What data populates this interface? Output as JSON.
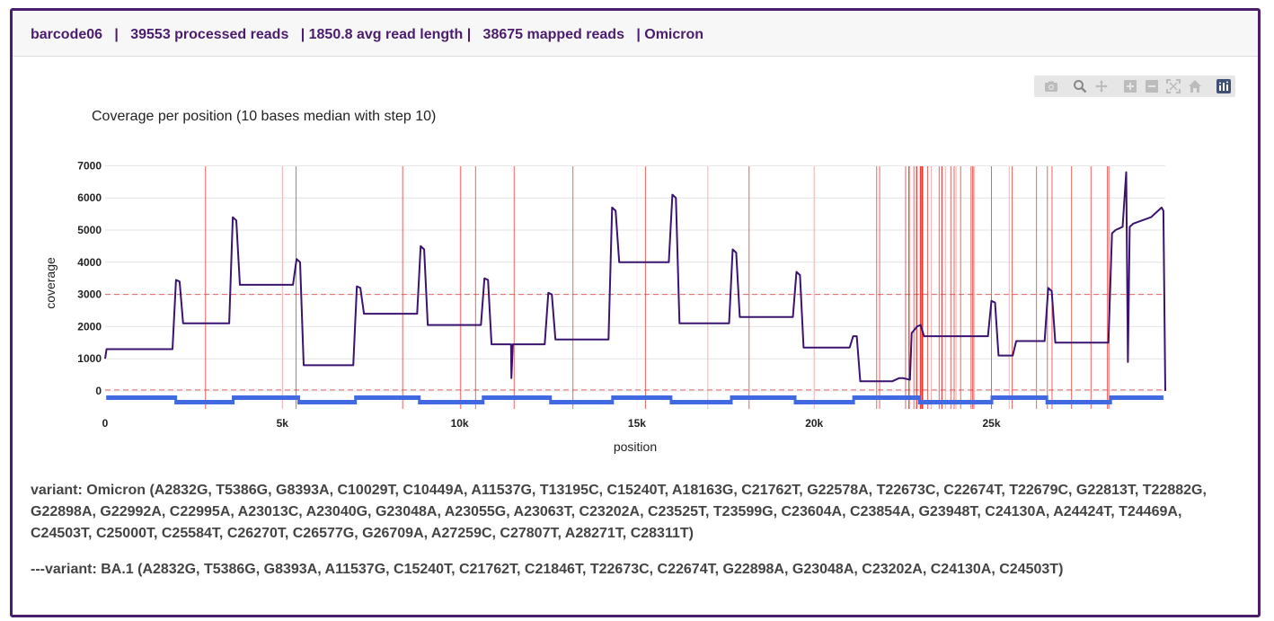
{
  "header": {
    "barcode": "barcode06",
    "processed_reads": "39553 processed reads",
    "avg_read_length": "1850.8 avg read length",
    "mapped_reads": "38675 mapped reads",
    "variant_short": "Omicron",
    "separator": "|"
  },
  "modebar": {
    "icons": [
      "camera-icon",
      "zoom-icon",
      "pan-icon",
      "zoom-in-icon",
      "zoom-out-icon",
      "autoscale-icon",
      "reset-axes-icon",
      "plotly-logo-icon"
    ]
  },
  "variants": {
    "omicron": "variant: Omicron (A2832G, T5386G, G8393A, C10029T, C10449A, A11537G, T13195C, C15240T, A18163G, C21762T, G22578A, T22673C, C22674T, T22679C, G22813T, T22882G, G22898A, G22992A, C22995A, A23013C, A23040G, G23048A, A23055G, A23063T, C23202A, C23525T, T23599G, C23604A, C23854A, G23948T, C24130A, A24424T, T24469A, C24503T, C25000T, C25584T, C26270T, C26577G, G26709A, A27259C, C27807T, A28271T, C28311T)",
    "ba1": "---variant: BA.1 (A2832G, T5386G, G8393A, A11537G, C15240T, C21762T, C21846T, T22673C, C22674T, G22898A, G23048A, C23202A, C24130A, C24503T)"
  },
  "chart_data": {
    "type": "line",
    "title": "Coverage per position (10 bases median with step 10)",
    "xlabel": "position",
    "ylabel": "coverage",
    "xlim": [
      0,
      29903
    ],
    "ylim": [
      -300,
      7000
    ],
    "xticks": [
      0,
      5000,
      10000,
      15000,
      20000,
      25000
    ],
    "xtick_labels": [
      "0",
      "5k",
      "10k",
      "15k",
      "20k",
      "25k"
    ],
    "yticks": [
      0,
      1000,
      2000,
      3000,
      4000,
      5000,
      6000,
      7000
    ],
    "ytick_labels": [
      "0",
      "1000",
      "2000",
      "3000",
      "4000",
      "5000",
      "6000",
      "7000"
    ],
    "grid": true,
    "colors": {
      "coverage_line": "#3b1470",
      "variant_line": "#e8302a",
      "threshold_line": "#e26a6a",
      "amplicon_track": "#4169e1"
    },
    "threshold_lines": [
      3000,
      30
    ],
    "coverage_series": {
      "name": "coverage",
      "x": [
        0,
        40,
        60,
        1900,
        2000,
        2100,
        2200,
        2300,
        3500,
        3600,
        3700,
        3800,
        5300,
        5400,
        5500,
        5600,
        7000,
        7100,
        7200,
        7300,
        8800,
        8900,
        9000,
        9100,
        10600,
        10700,
        10800,
        10900,
        11450,
        11460,
        11500,
        12400,
        12500,
        12600,
        12700,
        14200,
        14300,
        14400,
        14500,
        15900,
        16000,
        16100,
        16200,
        17600,
        17700,
        17800,
        17900,
        19400,
        19500,
        19600,
        19700,
        21000,
        21100,
        21200,
        21300,
        22200,
        22400,
        22500,
        22700,
        22750,
        22900,
        23000,
        23100,
        24900,
        25000,
        25100,
        25200,
        25600,
        25700,
        26500,
        26600,
        26700,
        26800,
        28300,
        28400,
        28500,
        28700,
        28800,
        28850,
        28900,
        29000,
        29500,
        29800,
        29850,
        29903
      ],
      "y": [
        1000,
        1300,
        1300,
        1300,
        3450,
        3400,
        2100,
        2100,
        2100,
        5400,
        5300,
        3300,
        3300,
        4100,
        4000,
        800,
        800,
        3250,
        3200,
        2400,
        2400,
        4500,
        4400,
        2050,
        2050,
        3500,
        3450,
        1450,
        1450,
        400,
        1450,
        1450,
        3050,
        3000,
        1600,
        1600,
        5700,
        5600,
        4000,
        4000,
        6100,
        6000,
        2100,
        2100,
        4400,
        4300,
        2300,
        2300,
        3700,
        3600,
        1350,
        1350,
        1700,
        1700,
        300,
        300,
        400,
        400,
        350,
        1800,
        2000,
        2050,
        1700,
        1700,
        2800,
        2750,
        1100,
        1100,
        1550,
        1550,
        3200,
        3100,
        1500,
        1500,
        4900,
        5000,
        5100,
        6800,
        900,
        5100,
        5200,
        5400,
        5700,
        5600,
        0
      ]
    },
    "variant_positions": [
      2832,
      5386,
      8393,
      10029,
      10449,
      11537,
      13195,
      15240,
      18163,
      21762,
      21846,
      22578,
      22673,
      22674,
      22679,
      22813,
      22882,
      22898,
      22992,
      22995,
      23013,
      23040,
      23048,
      23055,
      23063,
      23202,
      23525,
      23599,
      23604,
      23854,
      23948,
      24130,
      24424,
      24469,
      24503,
      25000,
      25584,
      26270,
      26577,
      26709,
      27259,
      27807,
      28271,
      28311
    ],
    "faint_variant_positions": [
      5000,
      17000,
      20000,
      23300,
      23700,
      24000,
      25500
    ],
    "amplicons": [
      {
        "start": 30,
        "end": 1980,
        "row": 0
      },
      {
        "start": 1980,
        "end": 3600,
        "row": 1
      },
      {
        "start": 3600,
        "end": 5450,
        "row": 0
      },
      {
        "start": 5450,
        "end": 7050,
        "row": 1
      },
      {
        "start": 7050,
        "end": 8850,
        "row": 0
      },
      {
        "start": 8850,
        "end": 10650,
        "row": 1
      },
      {
        "start": 10650,
        "end": 12550,
        "row": 0
      },
      {
        "start": 12550,
        "end": 14300,
        "row": 1
      },
      {
        "start": 14300,
        "end": 15950,
        "row": 0
      },
      {
        "start": 15950,
        "end": 17650,
        "row": 1
      },
      {
        "start": 17650,
        "end": 19450,
        "row": 0
      },
      {
        "start": 19450,
        "end": 21100,
        "row": 1
      },
      {
        "start": 21100,
        "end": 22950,
        "row": 0
      },
      {
        "start": 22950,
        "end": 25000,
        "row": 1
      },
      {
        "start": 25000,
        "end": 26550,
        "row": 0
      },
      {
        "start": 26550,
        "end": 28350,
        "row": 1
      },
      {
        "start": 28350,
        "end": 29850,
        "row": 0
      }
    ]
  }
}
